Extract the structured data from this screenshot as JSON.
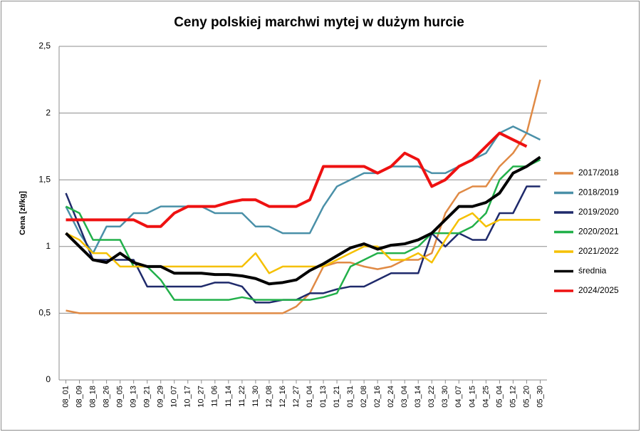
{
  "chart_data": {
    "type": "line",
    "title": "Ceny polskiej marchwi mytej w dużym hurcie",
    "y_label": "Cena [zł/kg]",
    "categories": [
      "08_01",
      "08_09",
      "08_18",
      "08_26",
      "09_05",
      "09_13",
      "09_21",
      "09_29",
      "10_07",
      "10_17",
      "10_27",
      "11_06",
      "11_14",
      "11_22",
      "11_30",
      "12_08",
      "12_16",
      "12_27",
      "01_04",
      "01_13",
      "01_21",
      "01_31",
      "02_08",
      "02_16",
      "02_24",
      "03_04",
      "03_14",
      "03_22",
      "03_30",
      "04_07",
      "04_15",
      "04_25",
      "05_04",
      "05_12",
      "05_20",
      "05_30"
    ],
    "ylim": [
      0,
      2.5
    ],
    "yticks": [
      0,
      {
        "value": 0.5,
        "label": "0,5"
      },
      1,
      {
        "value": 1.5,
        "label": "1,5"
      },
      2,
      {
        "value": 2.5,
        "label": "2,5"
      }
    ],
    "grid": true,
    "legend": "right",
    "series": [
      {
        "name": "2017/2018",
        "color": "#e08a45",
        "values": [
          0.52,
          0.5,
          0.5,
          0.5,
          0.5,
          0.5,
          0.5,
          0.5,
          0.5,
          0.5,
          0.5,
          0.5,
          0.5,
          0.5,
          0.5,
          0.5,
          0.5,
          0.55,
          0.65,
          0.85,
          0.88,
          0.88,
          0.85,
          0.83,
          0.85,
          0.9,
          0.9,
          0.95,
          1.25,
          1.4,
          1.45,
          1.45,
          1.6,
          1.7,
          1.85,
          2.25
        ]
      },
      {
        "name": "2018/2019",
        "color": "#4a90a8",
        "values": [
          1.3,
          1.1,
          0.95,
          1.15,
          1.15,
          1.25,
          1.25,
          1.3,
          1.3,
          1.3,
          1.3,
          1.25,
          1.25,
          1.25,
          1.15,
          1.15,
          1.1,
          1.1,
          1.1,
          1.3,
          1.45,
          1.5,
          1.55,
          1.55,
          1.6,
          1.6,
          1.6,
          1.55,
          1.55,
          1.6,
          1.65,
          1.7,
          1.85,
          1.9,
          1.85,
          1.8
        ]
      },
      {
        "name": "2019/2020",
        "color": "#1f2a6b",
        "values": [
          1.4,
          1.15,
          0.9,
          0.9,
          0.9,
          0.9,
          0.7,
          0.7,
          0.7,
          0.7,
          0.7,
          0.73,
          0.73,
          0.7,
          0.58,
          0.58,
          0.6,
          0.6,
          0.65,
          0.65,
          0.68,
          0.7,
          0.7,
          0.75,
          0.8,
          0.8,
          0.8,
          1.1,
          1.0,
          1.1,
          1.05,
          1.05,
          1.25,
          1.25,
          1.45,
          1.45
        ]
      },
      {
        "name": "2020/2021",
        "color": "#22b04a",
        "values": [
          1.3,
          1.25,
          1.05,
          1.05,
          1.05,
          0.85,
          0.85,
          0.75,
          0.6,
          0.6,
          0.6,
          0.6,
          0.6,
          0.62,
          0.6,
          0.6,
          0.6,
          0.6,
          0.6,
          0.62,
          0.65,
          0.85,
          0.9,
          0.95,
          0.95,
          0.95,
          1.0,
          1.1,
          1.1,
          1.1,
          1.15,
          1.25,
          1.5,
          1.6,
          1.6,
          1.65
        ]
      },
      {
        "name": "2021/2022",
        "color": "#f5c000",
        "values": [
          1.1,
          1.05,
          0.95,
          0.95,
          0.85,
          0.85,
          0.85,
          0.85,
          0.85,
          0.85,
          0.85,
          0.85,
          0.85,
          0.85,
          0.95,
          0.8,
          0.85,
          0.85,
          0.85,
          0.85,
          0.9,
          0.95,
          1.0,
          1.0,
          0.9,
          0.9,
          0.95,
          0.88,
          1.05,
          1.2,
          1.25,
          1.15,
          1.2,
          1.2,
          1.2,
          1.2
        ]
      },
      {
        "name": "średnia",
        "color": "#000000",
        "values": [
          1.1,
          1.0,
          0.9,
          0.88,
          0.95,
          0.88,
          0.85,
          0.85,
          0.8,
          0.8,
          0.8,
          0.79,
          0.79,
          0.78,
          0.76,
          0.72,
          0.73,
          0.75,
          0.82,
          0.87,
          0.93,
          0.99,
          1.02,
          0.98,
          1.01,
          1.02,
          1.05,
          1.1,
          1.2,
          1.3,
          1.3,
          1.33,
          1.4,
          1.55,
          1.6,
          1.67
        ]
      },
      {
        "name": "2024/2025",
        "color": "#ee1111",
        "values": [
          1.2,
          1.2,
          1.2,
          1.2,
          1.2,
          1.2,
          1.15,
          1.15,
          1.25,
          1.3,
          1.3,
          1.3,
          1.33,
          1.35,
          1.35,
          1.3,
          1.3,
          1.3,
          1.35,
          1.6,
          1.6,
          1.6,
          1.6,
          1.55,
          1.6,
          1.7,
          1.65,
          1.45,
          1.5,
          1.6,
          1.65,
          1.75,
          1.85,
          1.8,
          1.75,
          null
        ]
      }
    ]
  }
}
